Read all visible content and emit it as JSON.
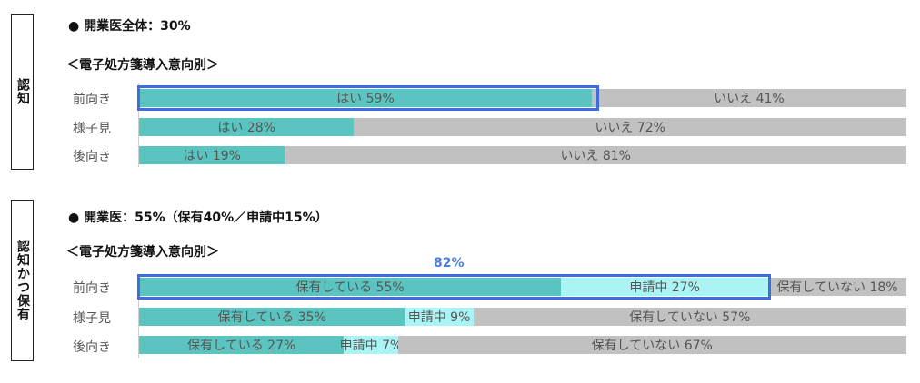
{
  "colors": {
    "yes": "#5cc4c0",
    "applying": "#aaf4f5",
    "no": "#c1c1c1",
    "highlight": "#3b6fe0"
  },
  "section1": {
    "side_label": "認知",
    "heading": "● 開業医全体：30%",
    "subheading": "＜電子処方箋導入意向別＞"
  },
  "section2": {
    "side_label": "認知かつ保有",
    "heading": "● 開業医：55%（保有40%／申請中15%）",
    "subheading": "＜電子処方箋導入意向別＞",
    "highlight_label": "82%"
  },
  "chart_data": [
    {
      "type": "bar",
      "orientation": "horizontal",
      "stacked": true,
      "title": "開業医全体：30%",
      "subtitle": "＜電子処方箋導入意向別＞",
      "categories": [
        "前向き",
        "様子見",
        "後向き"
      ],
      "series": [
        {
          "name": "はい",
          "values": [
            59,
            28,
            19
          ]
        },
        {
          "name": "いいえ",
          "values": [
            41,
            72,
            81
          ]
        }
      ],
      "segment_labels": [
        [
          "はい 59%",
          "いいえ 41%"
        ],
        [
          "はい 28%",
          "いいえ 72%"
        ],
        [
          "はい 19%",
          "いいえ 81%"
        ]
      ],
      "xlim": [
        0,
        100
      ],
      "highlighted_row": "前向き"
    },
    {
      "type": "bar",
      "orientation": "horizontal",
      "stacked": true,
      "title": "開業医：55%（保有40%／申請中15%）",
      "subtitle": "＜電子処方箋導入意向別＞",
      "categories": [
        "前向き",
        "様子見",
        "後向き"
      ],
      "series": [
        {
          "name": "保有している",
          "values": [
            55,
            35,
            27
          ]
        },
        {
          "name": "申請中",
          "values": [
            27,
            9,
            7
          ]
        },
        {
          "name": "保有していない",
          "values": [
            18,
            57,
            67
          ]
        }
      ],
      "segment_labels": [
        [
          "保有している 55%",
          "申請中 27%",
          "保有していない 18%"
        ],
        [
          "保有している 35%",
          "申請中 9%",
          "保有していない 57%"
        ],
        [
          "保有している 27%",
          "申請中 7%",
          "保有していない 67%"
        ]
      ],
      "xlim": [
        0,
        100
      ],
      "highlighted_row": "前向き",
      "highlight_annotation": "82%"
    }
  ]
}
